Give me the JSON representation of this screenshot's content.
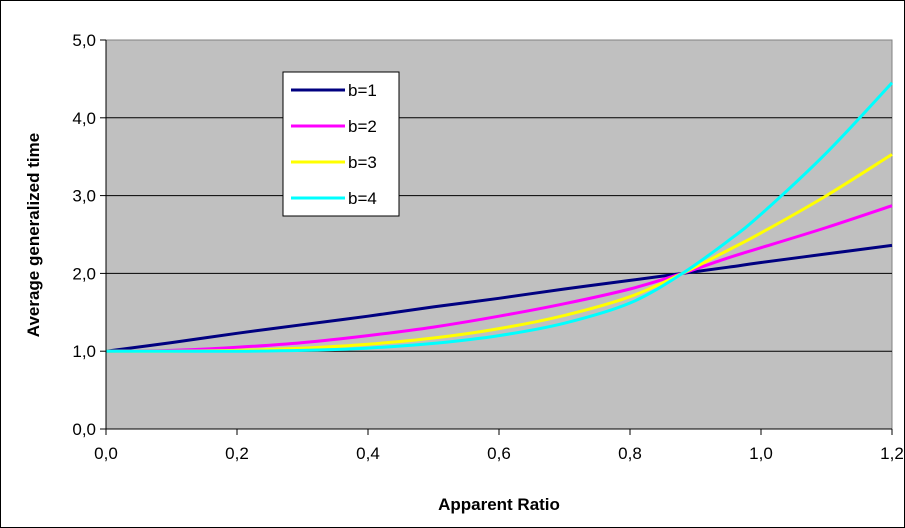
{
  "chart_data": {
    "type": "line",
    "title": "",
    "xlabel": "Apparent Ratio",
    "ylabel": "Average generalized time",
    "xlim": [
      0,
      1.2
    ],
    "ylim": [
      0,
      5
    ],
    "x_ticks": [
      "0,0",
      "0,2",
      "0,4",
      "0,6",
      "0,8",
      "1,0",
      "1,2"
    ],
    "y_ticks": [
      "0,0",
      "1,0",
      "2,0",
      "3,0",
      "4,0",
      "5,0"
    ],
    "grid": "horizontal",
    "plot_background": "#c0c0c0",
    "legend_position": "top-left inside",
    "x": [
      0.0,
      0.1,
      0.2,
      0.3,
      0.4,
      0.5,
      0.6,
      0.7,
      0.8,
      0.88,
      0.95,
      1.0,
      1.1,
      1.2
    ],
    "series": [
      {
        "name": "b=1",
        "color": "#000080",
        "values": [
          1.0,
          1.11,
          1.23,
          1.34,
          1.45,
          1.57,
          1.68,
          1.8,
          1.91,
          2.0,
          2.08,
          2.14,
          2.25,
          2.36
        ]
      },
      {
        "name": "b=2",
        "color": "#ff00ff",
        "values": [
          1.0,
          1.01,
          1.05,
          1.11,
          1.2,
          1.31,
          1.45,
          1.61,
          1.8,
          2.0,
          2.2,
          2.33,
          2.59,
          2.87
        ]
      },
      {
        "name": "b=3",
        "color": "#ffff00",
        "values": [
          1.0,
          1.0,
          1.01,
          1.04,
          1.09,
          1.17,
          1.29,
          1.46,
          1.7,
          2.0,
          2.3,
          2.52,
          3.0,
          3.53
        ]
      },
      {
        "name": "b=4",
        "color": "#00ffff",
        "values": [
          1.0,
          1.0,
          1.0,
          1.01,
          1.04,
          1.1,
          1.2,
          1.36,
          1.62,
          2.0,
          2.42,
          2.76,
          3.55,
          4.45
        ]
      }
    ]
  }
}
